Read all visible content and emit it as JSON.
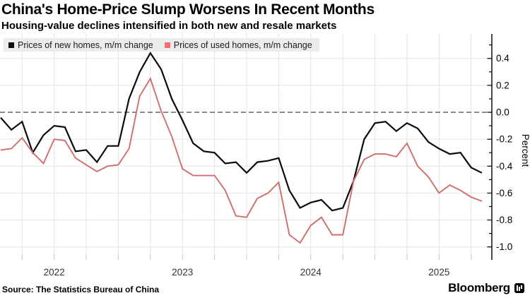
{
  "header": {
    "title": "China's Home-Price Slump Worsens In Recent Months",
    "subtitle": "Housing-value declines intensified in both new and resale markets"
  },
  "legend": {
    "items": [
      {
        "label": "Prices of new homes, m/m change",
        "color": "#111111"
      },
      {
        "label": "Prices of used homes, m/m change",
        "color": "#f4706d"
      }
    ]
  },
  "footer": {
    "source": "Source: The Statistics Bureau of China",
    "brand": "Bloomberg",
    "brand_icon": "bloomberg-terminal-icon"
  },
  "chart_data": {
    "type": "line",
    "unit_label": "Percent",
    "x": [
      "2022-01",
      "2022-02",
      "2022-03",
      "2022-04",
      "2022-05",
      "2022-06",
      "2022-07",
      "2022-08",
      "2022-09",
      "2022-10",
      "2022-11",
      "2022-12",
      "2023-01",
      "2023-02",
      "2023-03",
      "2023-04",
      "2023-05",
      "2023-06",
      "2023-07",
      "2023-08",
      "2023-09",
      "2023-10",
      "2023-11",
      "2023-12",
      "2024-01",
      "2024-02",
      "2024-03",
      "2024-04",
      "2024-05",
      "2024-06",
      "2024-07",
      "2024-08",
      "2024-09",
      "2024-10",
      "2024-11",
      "2024-12",
      "2025-01",
      "2025-02",
      "2025-03",
      "2025-04",
      "2025-05",
      "2025-06",
      "2025-07",
      "2025-08",
      "2025-09",
      "2025-10"
    ],
    "series": [
      {
        "name": "Prices of new homes, m/m change",
        "color": "#0a0a0a",
        "width": 2.2,
        "values": [
          -0.04,
          -0.13,
          -0.07,
          -0.3,
          -0.17,
          -0.1,
          -0.11,
          -0.29,
          -0.28,
          -0.37,
          -0.25,
          -0.25,
          0.1,
          0.3,
          0.44,
          0.32,
          0.1,
          -0.06,
          -0.23,
          -0.29,
          -0.3,
          -0.38,
          -0.37,
          -0.45,
          -0.37,
          -0.36,
          -0.34,
          -0.58,
          -0.71,
          -0.67,
          -0.65,
          -0.73,
          -0.71,
          -0.51,
          -0.2,
          -0.08,
          -0.07,
          -0.14,
          -0.08,
          -0.12,
          -0.22,
          -0.27,
          -0.31,
          -0.3,
          -0.41,
          -0.45
        ]
      },
      {
        "name": "Prices of used homes, m/m change",
        "color": "#d06e6c",
        "width": 1.9,
        "values": [
          -0.28,
          -0.27,
          -0.19,
          -0.3,
          -0.38,
          -0.2,
          -0.21,
          -0.34,
          -0.39,
          -0.44,
          -0.4,
          -0.39,
          -0.27,
          0.12,
          0.25,
          0.01,
          -0.18,
          -0.42,
          -0.47,
          -0.47,
          -0.47,
          -0.58,
          -0.77,
          -0.78,
          -0.64,
          -0.6,
          -0.52,
          -0.91,
          -0.97,
          -0.84,
          -0.78,
          -0.91,
          -0.91,
          -0.51,
          -0.35,
          -0.31,
          -0.31,
          -0.33,
          -0.23,
          -0.4,
          -0.48,
          -0.6,
          -0.54,
          -0.58,
          -0.63,
          -0.66
        ]
      }
    ],
    "ylim": [
      -1.1,
      0.52
    ],
    "axis": {
      "y_major_ticks": [
        0.4,
        0.2,
        0.0,
        -0.2,
        -0.4,
        -0.6,
        -0.8,
        -1.0
      ],
      "y_major_labels": [
        "0.4",
        "0.2",
        "0.0",
        "-0.2",
        "-0.4",
        "-0.6",
        "-0.8",
        "-1.0"
      ],
      "y_minor_ticks": [
        0.5,
        0.3,
        0.1,
        -0.1,
        -0.3,
        -0.5,
        -0.7,
        -0.9
      ],
      "zero_line_value": 0.0,
      "grid_month_indices": [
        2,
        5,
        8,
        11,
        14,
        17,
        20,
        23,
        26,
        29,
        32,
        35,
        38,
        41,
        44
      ],
      "year_labels": [
        {
          "label": "2022",
          "month_index": 5
        },
        {
          "label": "2023",
          "month_index": 17
        },
        {
          "label": "2024",
          "month_index": 29
        },
        {
          "label": "2025",
          "month_index": 41
        }
      ]
    },
    "style": {
      "grid_color": "#e3e3e3",
      "grid_stub_color": "#c6c6c6",
      "zero_line_color": "#454545",
      "axis_color": "#000000",
      "tick_label_color": "#000000",
      "year_label_color": "#333333"
    },
    "legend_position": "top-left",
    "grid": true
  }
}
